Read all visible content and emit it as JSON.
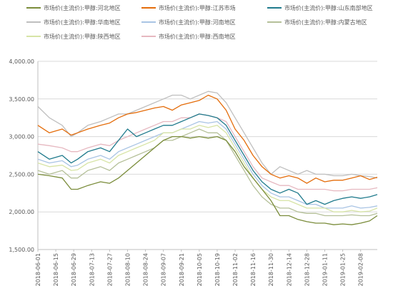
{
  "chart_data": {
    "type": "line",
    "title": "",
    "xlabel": "",
    "ylabel": "",
    "ylim": [
      1500,
      4000
    ],
    "yticks": [
      1500,
      2000,
      2500,
      3000,
      3500,
      4000
    ],
    "ytick_labels": [
      "1,500.00",
      "2,000.00",
      "2,500.00",
      "3,000.00",
      "3,500.00",
      "4,000.00"
    ],
    "xlim": [
      "2018-06-01",
      "2019-02-21"
    ],
    "xticks": [
      "2018-06-01",
      "2018-06-15",
      "2018-06-29",
      "2018-07-13",
      "2018-07-27",
      "2018-08-10",
      "2018-08-24",
      "2018-09-07",
      "2018-09-21",
      "2018-10-05",
      "2018-10-19",
      "2018-11-02",
      "2018-11-16",
      "2018-11-30",
      "2018-12-14",
      "2018-12-28",
      "2019-01-11",
      "2019-01-25",
      "2019-02-08"
    ],
    "grid": "horizontal",
    "legend": "top",
    "series": [
      {
        "name": "市场价(主流价):甲醇:河北地区",
        "color": "#7a8c3a",
        "x": [
          "2018-06-01",
          "2018-06-10",
          "2018-06-20",
          "2018-06-27",
          "2018-07-02",
          "2018-07-10",
          "2018-07-20",
          "2018-07-27",
          "2018-08-03",
          "2018-08-10",
          "2018-08-17",
          "2018-08-24",
          "2018-08-31",
          "2018-09-07",
          "2018-09-14",
          "2018-09-21",
          "2018-09-28",
          "2018-10-05",
          "2018-10-12",
          "2018-10-19",
          "2018-10-26",
          "2018-11-02",
          "2018-11-09",
          "2018-11-16",
          "2018-11-23",
          "2018-11-30",
          "2018-12-07",
          "2018-12-14",
          "2018-12-21",
          "2018-12-28",
          "2019-01-04",
          "2019-01-11",
          "2019-01-18",
          "2019-01-25",
          "2019-02-01",
          "2019-02-08",
          "2019-02-15",
          "2019-02-21"
        ],
        "values": [
          2500,
          2480,
          2450,
          2300,
          2300,
          2350,
          2400,
          2380,
          2450,
          2550,
          2650,
          2750,
          2850,
          2950,
          3000,
          3000,
          2980,
          3000,
          2980,
          3000,
          2950,
          2800,
          2600,
          2450,
          2300,
          2150,
          1950,
          1950,
          1900,
          1870,
          1850,
          1850,
          1830,
          1840,
          1830,
          1850,
          1880,
          1950
        ]
      },
      {
        "name": "市场价(主流价):甲醇:江苏市场",
        "color": "#e46c0a",
        "x": [
          "2018-06-01",
          "2018-06-10",
          "2018-06-20",
          "2018-06-27",
          "2018-07-02",
          "2018-07-10",
          "2018-07-20",
          "2018-07-27",
          "2018-08-03",
          "2018-08-10",
          "2018-08-17",
          "2018-08-24",
          "2018-08-31",
          "2018-09-07",
          "2018-09-14",
          "2018-09-21",
          "2018-09-28",
          "2018-10-05",
          "2018-10-12",
          "2018-10-19",
          "2018-10-26",
          "2018-11-02",
          "2018-11-09",
          "2018-11-16",
          "2018-11-23",
          "2018-11-30",
          "2018-12-07",
          "2018-12-14",
          "2018-12-21",
          "2018-12-28",
          "2019-01-04",
          "2019-01-11",
          "2019-01-18",
          "2019-01-25",
          "2019-02-01",
          "2019-02-08",
          "2019-02-15",
          "2019-02-21"
        ],
        "values": [
          3150,
          3050,
          3100,
          3020,
          3050,
          3100,
          3150,
          3180,
          3250,
          3300,
          3320,
          3350,
          3380,
          3400,
          3350,
          3420,
          3450,
          3480,
          3550,
          3500,
          3350,
          3100,
          2950,
          2750,
          2600,
          2500,
          2450,
          2480,
          2450,
          2380,
          2450,
          2400,
          2420,
          2420,
          2450,
          2480,
          2430,
          2460
        ]
      },
      {
        "name": "市场价(主流价):甲醇:山东南部地区",
        "color": "#1f7a8c",
        "x": [
          "2018-06-01",
          "2018-06-10",
          "2018-06-20",
          "2018-06-27",
          "2018-07-02",
          "2018-07-10",
          "2018-07-20",
          "2018-07-27",
          "2018-08-03",
          "2018-08-10",
          "2018-08-17",
          "2018-08-24",
          "2018-08-31",
          "2018-09-07",
          "2018-09-14",
          "2018-09-21",
          "2018-09-28",
          "2018-10-05",
          "2018-10-12",
          "2018-10-19",
          "2018-10-26",
          "2018-11-02",
          "2018-11-09",
          "2018-11-16",
          "2018-11-23",
          "2018-11-30",
          "2018-12-07",
          "2018-12-14",
          "2018-12-21",
          "2018-12-28",
          "2019-01-04",
          "2019-01-11",
          "2019-01-18",
          "2019-01-25",
          "2019-02-01",
          "2019-02-08",
          "2019-02-15",
          "2019-02-21"
        ],
        "values": [
          2800,
          2700,
          2750,
          2650,
          2700,
          2800,
          2850,
          2800,
          2950,
          3100,
          3000,
          3050,
          3100,
          3150,
          3150,
          3200,
          3250,
          3300,
          3280,
          3250,
          3150,
          2950,
          2750,
          2550,
          2400,
          2300,
          2250,
          2300,
          2250,
          2100,
          2150,
          2100,
          2150,
          2180,
          2200,
          2180,
          2200,
          2230
        ]
      },
      {
        "name": "市场价(主流价):甲醇:华南地区",
        "color": "#bfbfbf",
        "x": [
          "2018-06-01",
          "2018-06-10",
          "2018-06-20",
          "2018-06-27",
          "2018-07-02",
          "2018-07-10",
          "2018-07-20",
          "2018-07-27",
          "2018-08-03",
          "2018-08-10",
          "2018-08-17",
          "2018-08-24",
          "2018-08-31",
          "2018-09-07",
          "2018-09-14",
          "2018-09-21",
          "2018-09-28",
          "2018-10-05",
          "2018-10-12",
          "2018-10-19",
          "2018-10-26",
          "2018-11-02",
          "2018-11-09",
          "2018-11-16",
          "2018-11-23",
          "2018-11-30",
          "2018-12-07",
          "2018-12-14",
          "2018-12-21",
          "2018-12-28",
          "2019-01-04",
          "2019-01-11",
          "2019-01-18",
          "2019-01-25",
          "2019-02-01",
          "2019-02-08",
          "2019-02-15",
          "2019-02-21"
        ],
        "values": [
          3400,
          3250,
          3150,
          3000,
          3050,
          3150,
          3200,
          3250,
          3300,
          3300,
          3350,
          3400,
          3450,
          3500,
          3550,
          3550,
          3500,
          3550,
          3600,
          3580,
          3450,
          3250,
          3050,
          2850,
          2650,
          2500,
          2600,
          2550,
          2500,
          2550,
          2500,
          2500,
          2480,
          2480,
          2500,
          2480,
          2470,
          2450
        ]
      },
      {
        "name": "市场价(主流价):甲醇:河南地区",
        "color": "#a9c4e4",
        "x": [
          "2018-06-01",
          "2018-06-10",
          "2018-06-20",
          "2018-06-27",
          "2018-07-02",
          "2018-07-10",
          "2018-07-20",
          "2018-07-27",
          "2018-08-03",
          "2018-08-10",
          "2018-08-17",
          "2018-08-24",
          "2018-08-31",
          "2018-09-07",
          "2018-09-14",
          "2018-09-21",
          "2018-09-28",
          "2018-10-05",
          "2018-10-12",
          "2018-10-19",
          "2018-10-26",
          "2018-11-02",
          "2018-11-09",
          "2018-11-16",
          "2018-11-23",
          "2018-11-30",
          "2018-12-07",
          "2018-12-14",
          "2018-12-21",
          "2018-12-28",
          "2019-01-04",
          "2019-01-11",
          "2019-01-18",
          "2019-01-25",
          "2019-02-01",
          "2019-02-08",
          "2019-02-15",
          "2019-02-21"
        ],
        "values": [
          2700,
          2650,
          2680,
          2600,
          2620,
          2700,
          2750,
          2700,
          2800,
          2850,
          2900,
          2950,
          3000,
          3050,
          3050,
          3100,
          3150,
          3200,
          3180,
          3200,
          3100,
          2900,
          2700,
          2500,
          2350,
          2250,
          2200,
          2200,
          2150,
          2100,
          2100,
          2050,
          2050,
          2050,
          2080,
          2050,
          2060,
          2080
        ]
      },
      {
        "name": "市场价(主流价):甲醇:内蒙古地区",
        "color": "#b5c099",
        "x": [
          "2018-06-01",
          "2018-06-10",
          "2018-06-20",
          "2018-06-27",
          "2018-07-02",
          "2018-07-10",
          "2018-07-20",
          "2018-07-27",
          "2018-08-03",
          "2018-08-10",
          "2018-08-17",
          "2018-08-24",
          "2018-08-31",
          "2018-09-07",
          "2018-09-14",
          "2018-09-21",
          "2018-09-28",
          "2018-10-05",
          "2018-10-12",
          "2018-10-19",
          "2018-10-26",
          "2018-11-02",
          "2018-11-09",
          "2018-11-16",
          "2018-11-23",
          "2018-11-30",
          "2018-12-07",
          "2018-12-14",
          "2018-12-21",
          "2018-12-28",
          "2019-01-04",
          "2019-01-11",
          "2019-01-18",
          "2019-01-25",
          "2019-02-01",
          "2019-02-08",
          "2019-02-15",
          "2019-02-21"
        ],
        "values": [
          2550,
          2500,
          2550,
          2450,
          2450,
          2550,
          2600,
          2550,
          2650,
          2700,
          2750,
          2800,
          2850,
          2950,
          2950,
          3000,
          3050,
          3100,
          3050,
          3050,
          2950,
          2750,
          2550,
          2350,
          2200,
          2100,
          2050,
          2050,
          2000,
          1980,
          1980,
          1950,
          1950,
          1950,
          1960,
          1950,
          1950,
          1980
        ]
      },
      {
        "name": "市场价(主流价):甲醇:陕西地区",
        "color": "#d7e4a6",
        "x": [
          "2018-06-01",
          "2018-06-10",
          "2018-06-20",
          "2018-06-27",
          "2018-07-02",
          "2018-07-10",
          "2018-07-20",
          "2018-07-27",
          "2018-08-03",
          "2018-08-10",
          "2018-08-17",
          "2018-08-24",
          "2018-08-31",
          "2018-09-07",
          "2018-09-14",
          "2018-09-21",
          "2018-09-28",
          "2018-10-05",
          "2018-10-12",
          "2018-10-19",
          "2018-10-26",
          "2018-11-02",
          "2018-11-09",
          "2018-11-16",
          "2018-11-23",
          "2018-11-30",
          "2018-12-07",
          "2018-12-14",
          "2018-12-21",
          "2018-12-28",
          "2019-01-04",
          "2019-01-11",
          "2019-01-18",
          "2019-01-25",
          "2019-02-01",
          "2019-02-08",
          "2019-02-15",
          "2019-02-21"
        ],
        "values": [
          2650,
          2600,
          2620,
          2550,
          2560,
          2650,
          2700,
          2650,
          2750,
          2800,
          2850,
          2900,
          2950,
          3050,
          3050,
          3100,
          3100,
          3150,
          3120,
          3150,
          3050,
          2850,
          2650,
          2450,
          2300,
          2200,
          2150,
          2150,
          2100,
          2050,
          2050,
          2050,
          2000,
          2000,
          2020,
          2000,
          2010,
          2050
        ]
      },
      {
        "name": "市场价(主流价):甲醇:西南地区",
        "color": "#e6b8c0",
        "x": [
          "2018-06-01",
          "2018-06-10",
          "2018-06-20",
          "2018-06-27",
          "2018-07-02",
          "2018-07-10",
          "2018-07-20",
          "2018-07-27",
          "2018-08-03",
          "2018-08-10",
          "2018-08-17",
          "2018-08-24",
          "2018-08-31",
          "2018-09-07",
          "2018-09-14",
          "2018-09-21",
          "2018-09-28",
          "2018-10-05",
          "2018-10-12",
          "2018-10-19",
          "2018-10-26",
          "2018-11-02",
          "2018-11-09",
          "2018-11-16",
          "2018-11-23",
          "2018-11-30",
          "2018-12-07",
          "2018-12-14",
          "2018-12-21",
          "2018-12-28",
          "2019-01-04",
          "2019-01-11",
          "2019-01-18",
          "2019-01-25",
          "2019-02-01",
          "2019-02-08",
          "2019-02-15",
          "2019-02-21"
        ],
        "values": [
          2900,
          2880,
          2850,
          2800,
          2800,
          2850,
          2900,
          2880,
          2950,
          3000,
          3050,
          3100,
          3150,
          3200,
          3200,
          3250,
          3250,
          3300,
          3280,
          3250,
          3200,
          3000,
          2800,
          2600,
          2450,
          2400,
          2350,
          2350,
          2300,
          2300,
          2300,
          2300,
          2280,
          2280,
          2300,
          2300,
          2300,
          2320
        ]
      }
    ]
  }
}
